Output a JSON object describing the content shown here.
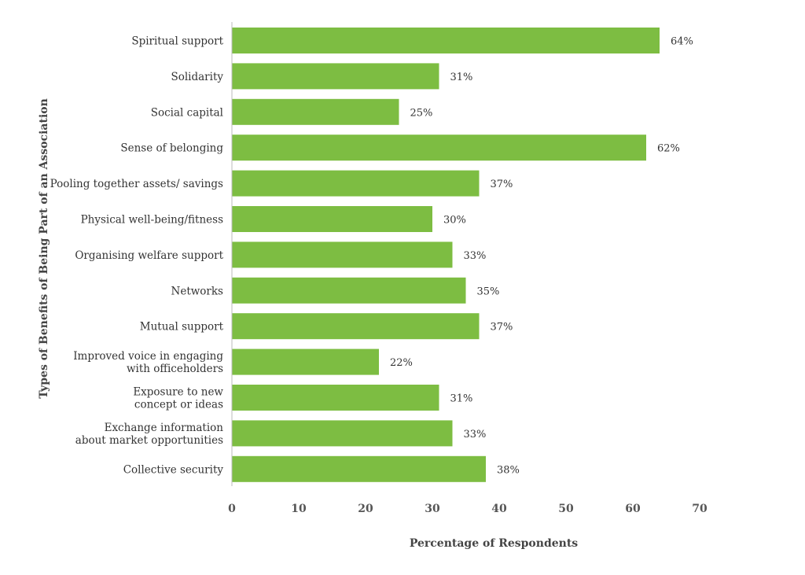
{
  "chart_data": {
    "type": "bar",
    "orientation": "horizontal",
    "categories": [
      "Spiritual support",
      "Solidarity",
      "Social capital",
      "Sense of belonging",
      "Pooling together assets/ savings",
      "Physical well-being/fitness",
      "Organising welfare support",
      "Networks",
      "Mutual support",
      "Improved voice in engaging with officeholders",
      "Exposure to new concept or ideas",
      "Exchange information about market opportunities",
      "Collective security"
    ],
    "category_lines": [
      [
        "Spiritual support"
      ],
      [
        "Solidarity"
      ],
      [
        "Social capital"
      ],
      [
        "Sense of belonging"
      ],
      [
        "Pooling together assets/ savings"
      ],
      [
        "Physical well-being/fitness"
      ],
      [
        "Organising welfare support"
      ],
      [
        "Networks"
      ],
      [
        "Mutual support"
      ],
      [
        "Improved voice in engaging",
        "with officeholders"
      ],
      [
        "Exposure to new",
        "concept or ideas"
      ],
      [
        "Exchange information",
        "about market opportunities"
      ],
      [
        "Collective security"
      ]
    ],
    "values": [
      64,
      31,
      25,
      62,
      37,
      30,
      33,
      35,
      37,
      22,
      31,
      33,
      38
    ],
    "value_labels": [
      "64%",
      "31%",
      "25%",
      "62%",
      "37%",
      "30%",
      "33%",
      "35%",
      "37%",
      "22%",
      "31%",
      "33%",
      "38%"
    ],
    "xlabel": "Percentage of Respondents",
    "ylabel": "Types of Benefits of Being Part of an Association",
    "xlim": [
      0,
      70
    ],
    "xticks": [
      0,
      10,
      20,
      30,
      40,
      50,
      60,
      70
    ],
    "grid": false,
    "bar_color": "#7dbd42"
  }
}
